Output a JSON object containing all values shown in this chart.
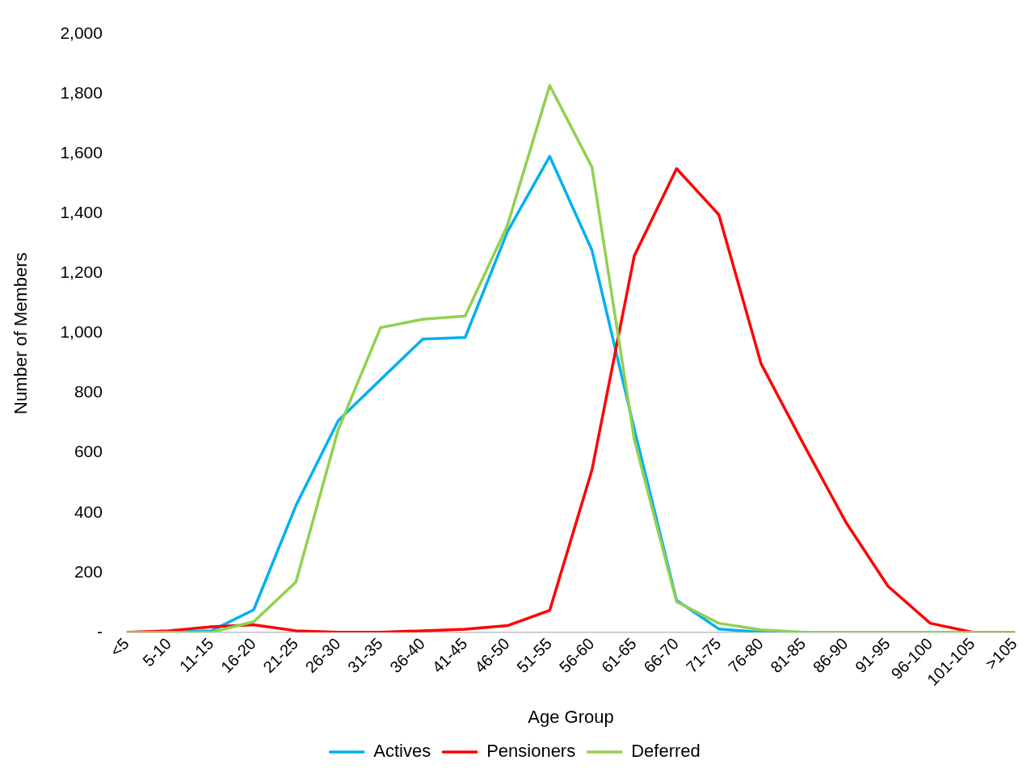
{
  "chart_data": {
    "type": "line",
    "xlabel": "Age Group",
    "ylabel": "Number of Members",
    "categories": [
      "<5",
      "5-10",
      "11-15",
      "16-20",
      "21-25",
      "26-30",
      "31-35",
      "36-40",
      "41-45",
      "46-50",
      "51-55",
      "56-60",
      "61-65",
      "66-70",
      "71-75",
      "76-80",
      "81-85",
      "86-90",
      "91-95",
      "96-100",
      "101-105",
      ">105"
    ],
    "series": [
      {
        "name": "Actives",
        "color": "#00b0f0",
        "values": [
          0,
          0,
          5,
          75,
          424,
          708,
          845,
          981,
          986,
          1340,
          1592,
          1278,
          680,
          107,
          11,
          0,
          0,
          null,
          null,
          null,
          null,
          null
        ]
      },
      {
        "name": "Pensioners",
        "color": "#ff0000",
        "values": [
          0,
          5,
          18,
          25,
          5,
          0,
          0,
          5,
          10,
          22,
          73,
          543,
          1259,
          1551,
          1397,
          898,
          630,
          369,
          154,
          30,
          0,
          0
        ]
      },
      {
        "name": "Deferred",
        "color": "#92d050",
        "values": [
          0,
          0,
          0,
          35,
          168,
          678,
          1019,
          1047,
          1058,
          1361,
          1829,
          1556,
          645,
          102,
          30,
          8,
          0,
          0,
          0,
          0,
          0,
          0
        ]
      }
    ],
    "ylim": [
      0,
      2000
    ],
    "yticks": [
      {
        "value": 0,
        "label": "-"
      },
      200,
      400,
      600,
      800,
      {
        "value": 1000,
        "label": "1,000"
      },
      {
        "value": 1200,
        "label": "1,200"
      },
      {
        "value": 1400,
        "label": "1,400"
      },
      {
        "value": 1600,
        "label": "1,600"
      },
      {
        "value": 1800,
        "label": "1,800"
      },
      {
        "value": 2000,
        "label": "2,000"
      }
    ],
    "grid": false,
    "legend": "bottom",
    "marker": "none",
    "line_style": "solid"
  }
}
